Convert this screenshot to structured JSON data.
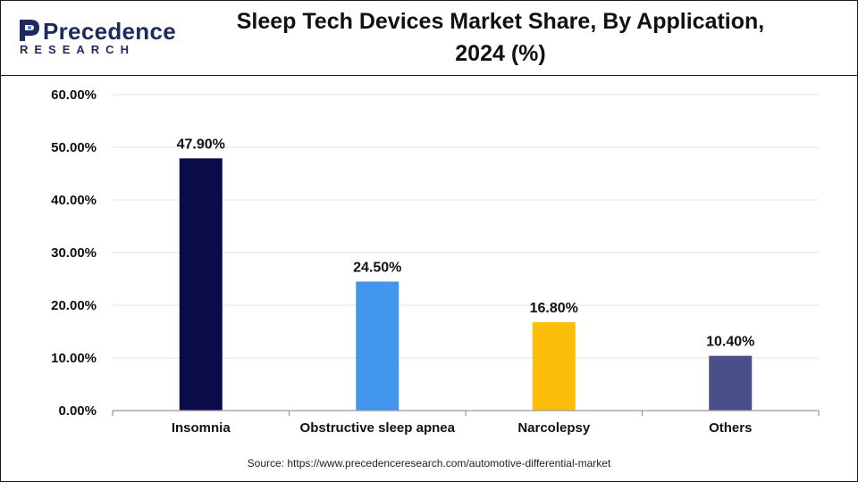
{
  "brand": {
    "name": "Precedence",
    "sub": "RESEARCH"
  },
  "chart_data": {
    "type": "bar",
    "title_line1": "Sleep Tech Devices Market Share, By Application,",
    "title_line2": "2024 (%)",
    "categories": [
      "Insomnia",
      "Obstructive sleep apnea",
      "Narcolepsy",
      "Others"
    ],
    "values": [
      47.9,
      24.5,
      16.8,
      10.4
    ],
    "data_labels": [
      "47.90%",
      "24.50%",
      "16.80%",
      "10.40%"
    ],
    "colors": [
      "#0a0c4a",
      "#4396ee",
      "#fdbe0a",
      "#4a4f8a"
    ],
    "ylim": [
      0,
      60
    ],
    "yticks": [
      0,
      10,
      20,
      30,
      40,
      50,
      60
    ],
    "ytick_labels": [
      "0.00%",
      "10.00%",
      "20.00%",
      "30.00%",
      "40.00%",
      "50.00%",
      "60.00%"
    ],
    "xlabel": "",
    "ylabel": "",
    "grid": true
  },
  "source": "Source: https://www.precedenceresearch.com/automotive-differential-market"
}
